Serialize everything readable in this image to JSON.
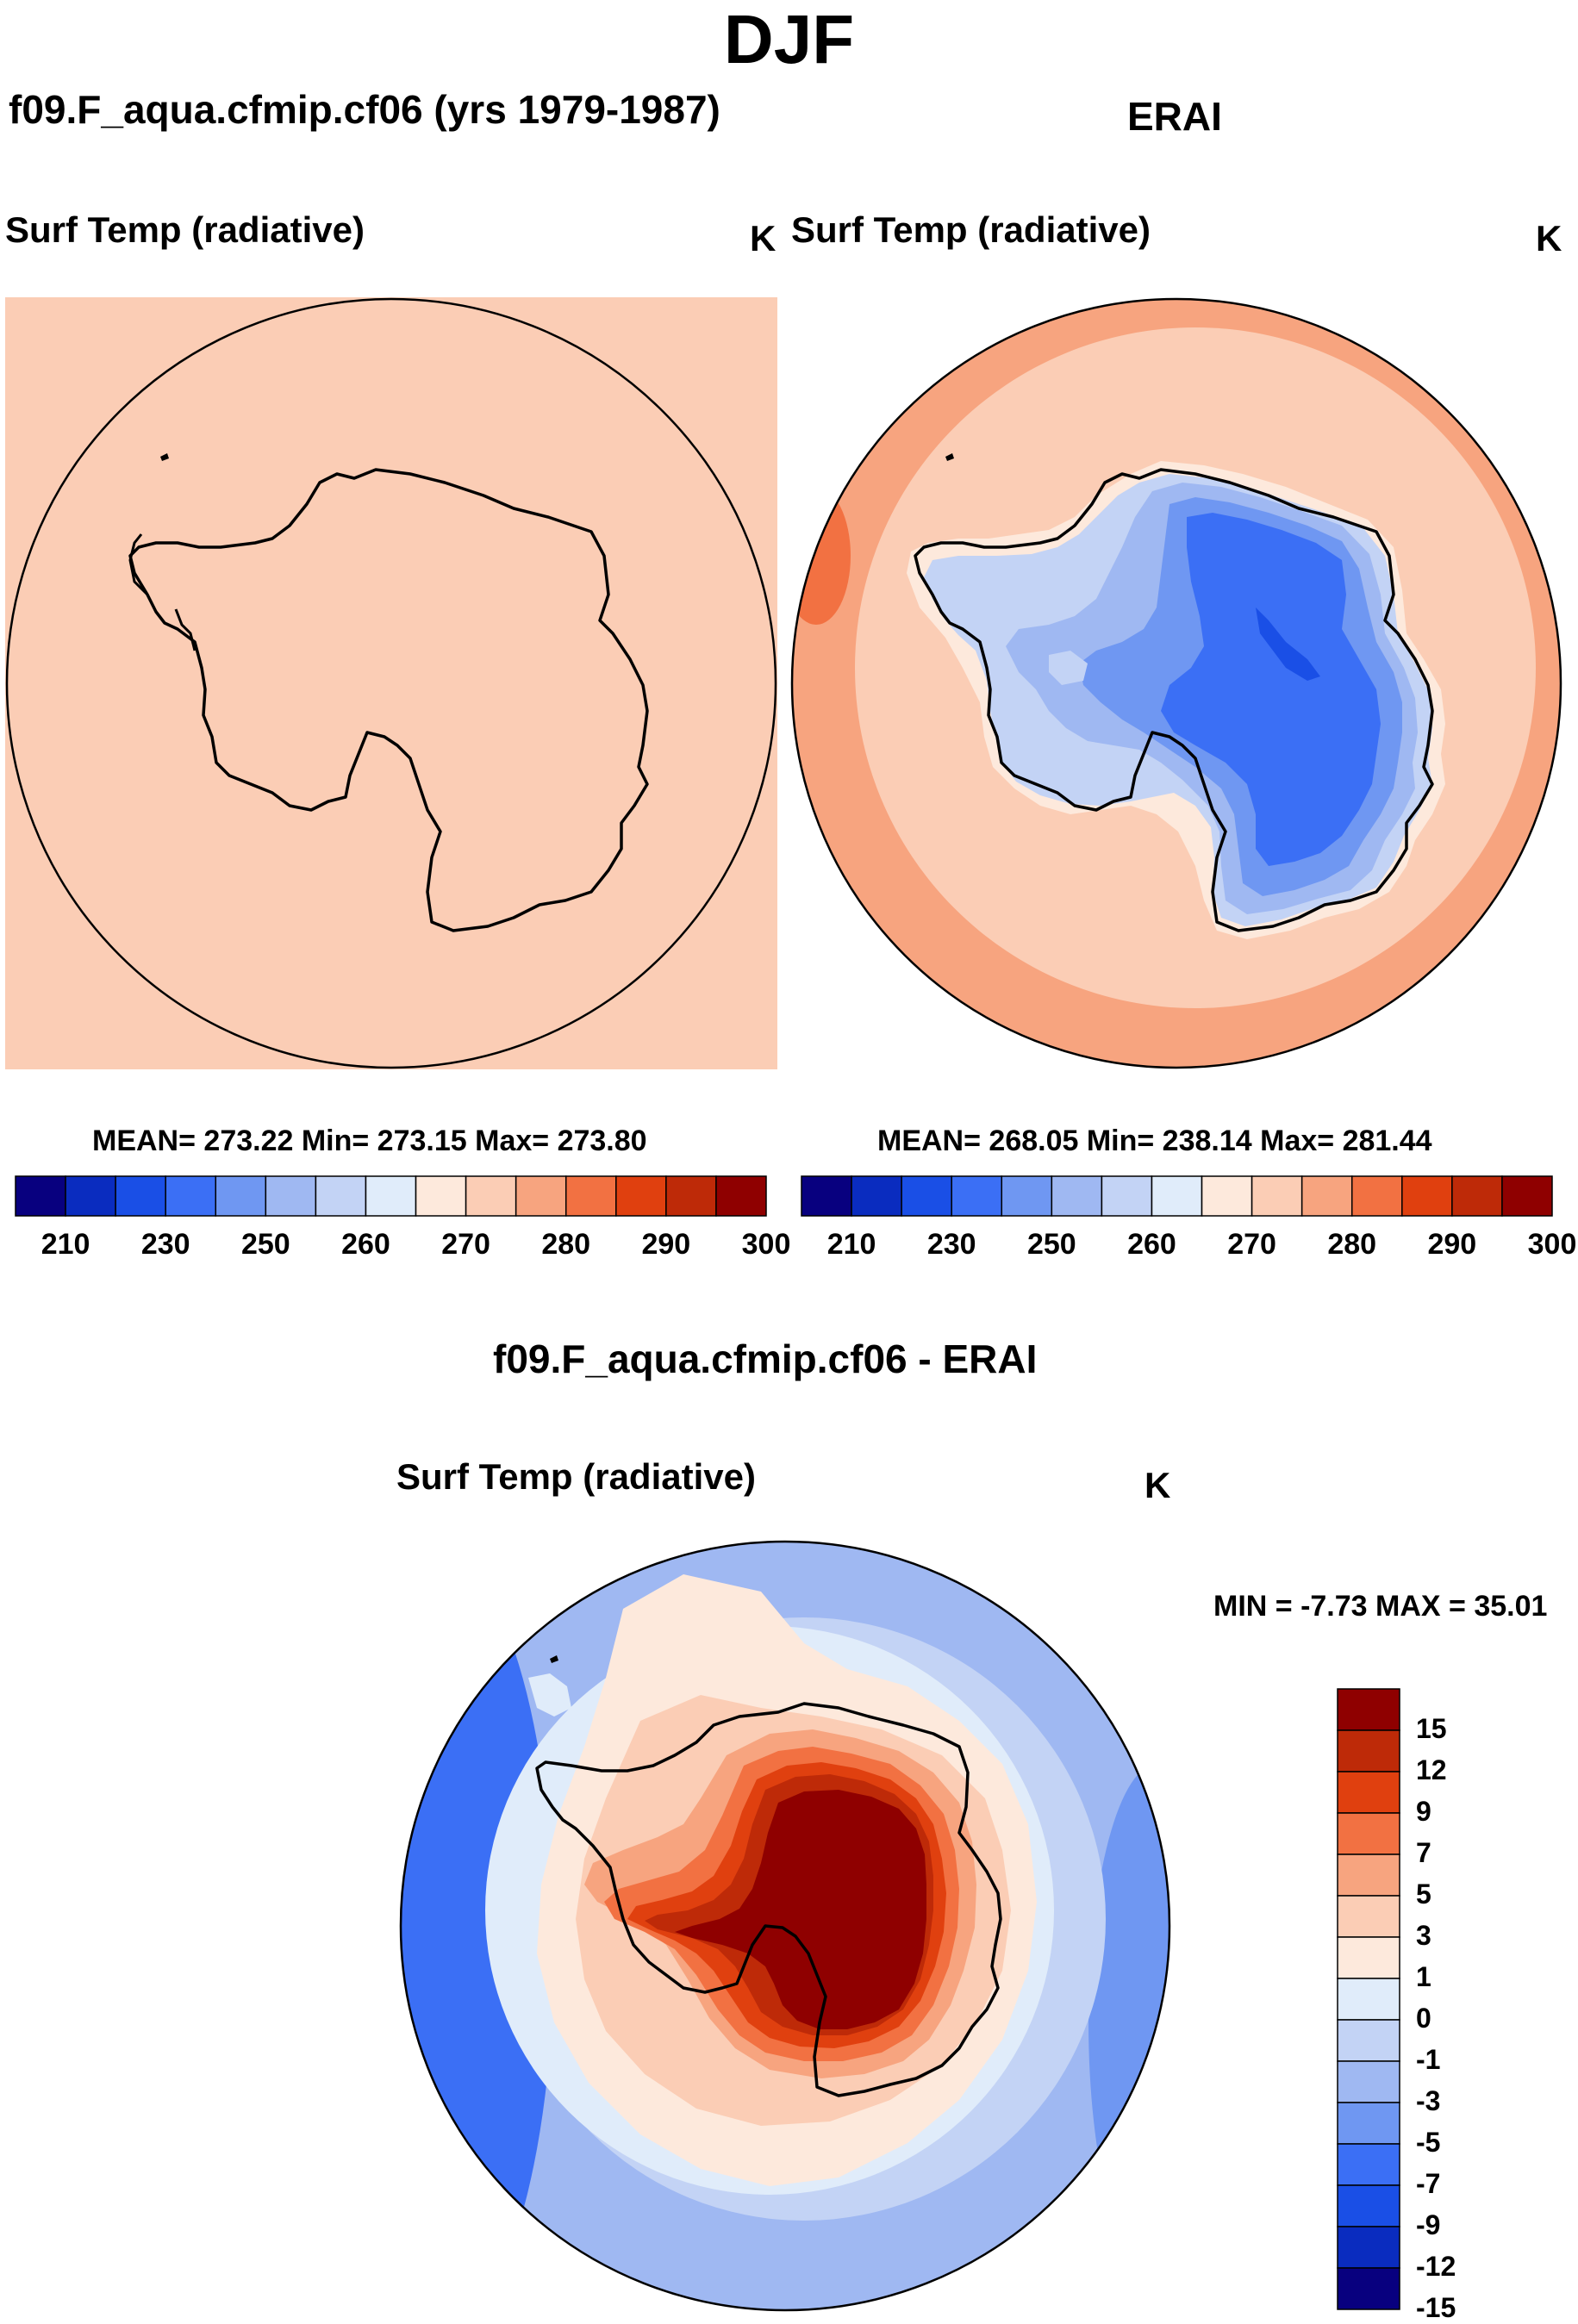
{
  "page_title": "DJF",
  "top_left": {
    "case_title": "f09.F_aqua.cfmip.cf06 (yrs 1979-1987)",
    "variable": "Surf Temp (radiative)",
    "units": "K",
    "stats": "MEAN= 273.22  Min= 273.15  Max= 273.80"
  },
  "top_right": {
    "case_title": "ERAI",
    "variable": "Surf Temp (radiative)",
    "units": "K",
    "stats": "MEAN= 268.05  Min= 238.14  Max= 281.44"
  },
  "bottom": {
    "case_title": "f09.F_aqua.cfmip.cf06 - ERAI",
    "variable": "Surf Temp (radiative)",
    "units": "K",
    "stats": "MIN =  -7.73 MAX =  35.01"
  },
  "colors": {
    "abs_scale": [
      "#08007f",
      "#0a2cbf",
      "#1a4fe6",
      "#3b6ff5",
      "#6f97f2",
      "#9fb8f2",
      "#c3d3f5",
      "#e0ecfa",
      "#fde9dc",
      "#fbcdb5",
      "#f7a47f",
      "#f27142",
      "#e0400f",
      "#be2a08",
      "#8f0000"
    ],
    "diff_scale": [
      "#08007f",
      "#0a2cbf",
      "#1a4fe6",
      "#3b6ff5",
      "#6f97f2",
      "#9fb8f2",
      "#c3d3f5",
      "#e0ecfa",
      "#fde9dc",
      "#fbcdb5",
      "#f7a47f",
      "#f27142",
      "#e0400f",
      "#be2a08",
      "#8f0000"
    ]
  },
  "chart_data": [
    {
      "type": "heatmap",
      "title": "Surf Temp (radiative)",
      "subtitle": "f09.F_aqua.cfmip.cf06 (yrs 1979-1987)",
      "units": "K",
      "projection": "south polar stereographic",
      "mean": 273.22,
      "min": 273.15,
      "max": 273.8,
      "colorbar_levels": [
        210,
        215,
        220,
        225,
        230,
        235,
        240,
        245,
        250,
        255,
        260,
        265,
        270,
        275,
        280,
        285,
        290,
        295,
        300
      ],
      "colorbar_tick_labels": [
        "210",
        "230",
        "250",
        "260",
        "270",
        "280",
        "290",
        "300"
      ],
      "field_level": "270-275 uniform"
    },
    {
      "type": "heatmap",
      "title": "Surf Temp (radiative)",
      "subtitle": "ERAI",
      "units": "K",
      "projection": "south polar stereographic",
      "mean": 268.05,
      "min": 238.14,
      "max": 281.44,
      "colorbar_tick_labels": [
        "210",
        "230",
        "250",
        "260",
        "270",
        "280",
        "290",
        "300"
      ]
    },
    {
      "type": "heatmap",
      "title": "Surf Temp (radiative)",
      "subtitle": "f09.F_aqua.cfmip.cf06 - ERAI",
      "units": "K",
      "projection": "south polar stereographic",
      "min": -7.73,
      "max": 35.01,
      "colorbar_tick_labels": [
        "15",
        "12",
        "9",
        "7",
        "5",
        "3",
        "1",
        "0",
        "-1",
        "-3",
        "-5",
        "-7",
        "-9",
        "-12",
        "-15"
      ]
    }
  ]
}
